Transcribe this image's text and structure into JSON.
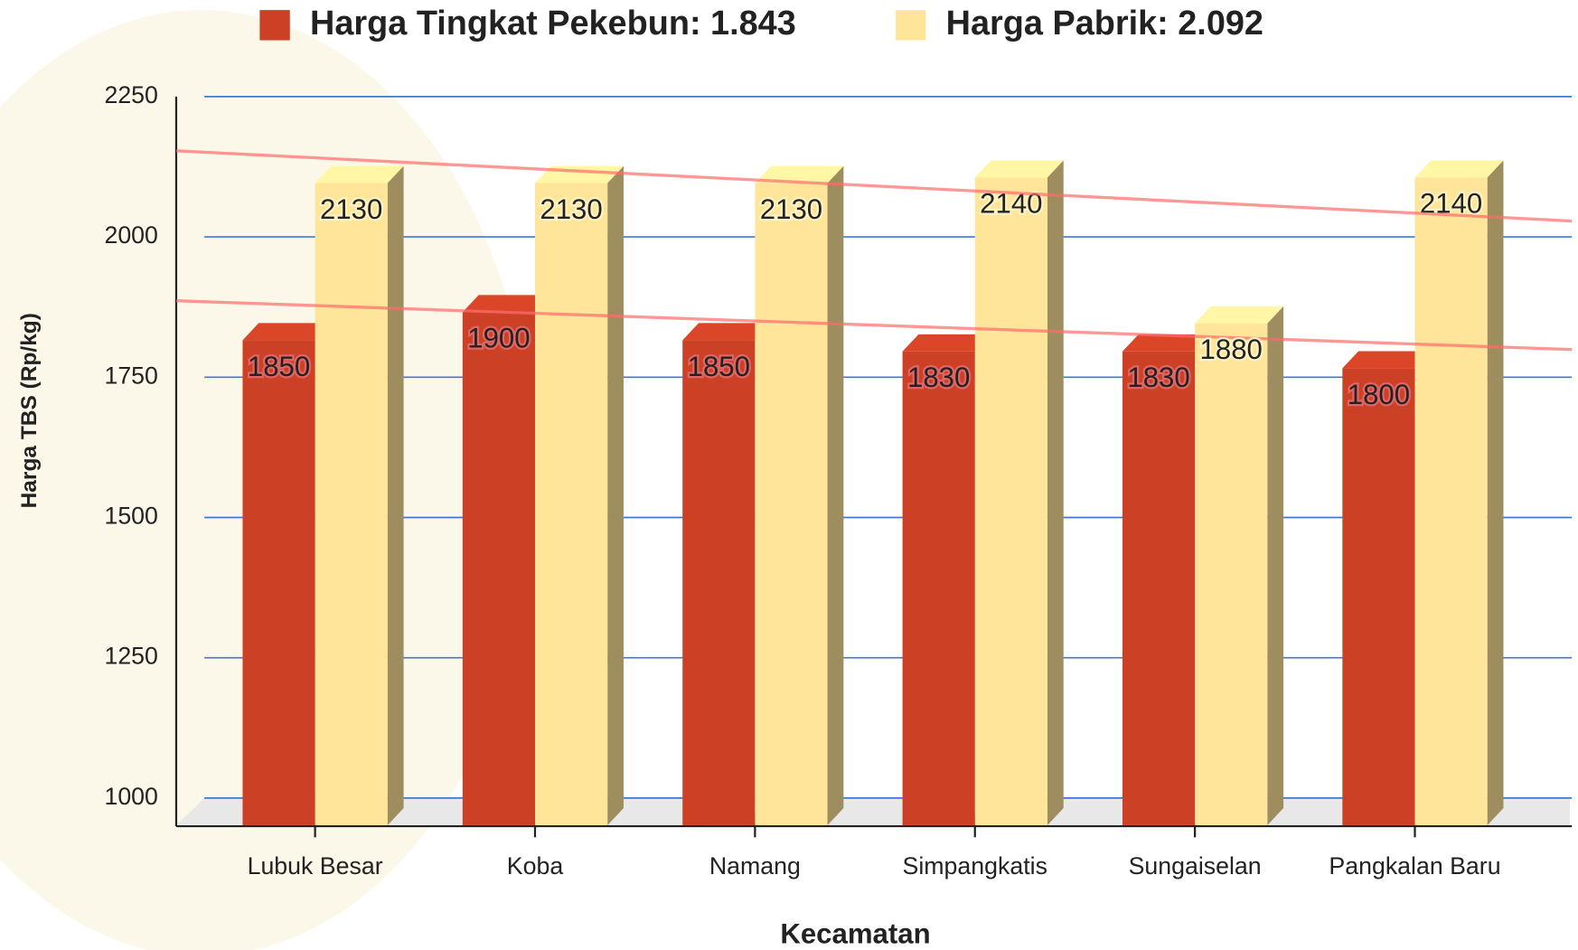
{
  "chart_data": {
    "type": "bar3d",
    "x_label": "Kecamatan",
    "y_label": "Harga TBS (Rp/kg)",
    "categories": [
      "Lubuk Besar",
      "Koba",
      "Namang",
      "Simpangkatis",
      "Sungaiselan",
      "Pangkalan Baru"
    ],
    "series": [
      {
        "name": "Harga Tingkat Pekebun: 1.843",
        "color": "#cc4125",
        "values": [
          1850,
          1900,
          1850,
          1830,
          1830,
          1800
        ]
      },
      {
        "name": "Harga Pabrik: 2.092",
        "color": "#ffe599",
        "values": [
          2130,
          2130,
          2130,
          2140,
          1880,
          2140
        ]
      }
    ],
    "ylim": [
      1000,
      2250
    ],
    "yticks": [
      1000,
      1250,
      1500,
      1750,
      2000,
      2250
    ],
    "grid": true,
    "trendline": true,
    "legend": "top"
  }
}
